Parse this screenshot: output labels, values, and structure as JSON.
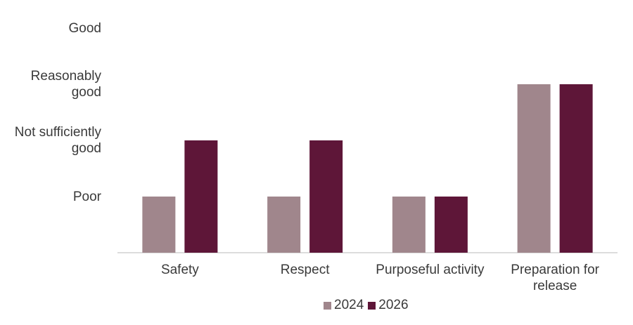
{
  "chart_data": {
    "type": "bar",
    "categories": [
      "Safety",
      "Respect",
      "Purposeful activity",
      "Preparation for\nrelease"
    ],
    "y_levels": [
      "Poor",
      "Not sufficiently\ngood",
      "Reasonably\ngood",
      "Good"
    ],
    "ylim": [
      0,
      4
    ],
    "series": [
      {
        "name": "2024",
        "color": "#a0868c",
        "values": [
          1,
          1,
          1,
          3
        ]
      },
      {
        "name": "2026",
        "color": "#5e1638",
        "values": [
          2,
          2,
          1,
          3
        ]
      }
    ],
    "grid": false,
    "legend": "bottom-center",
    "axis_color": "#d0d0d0"
  }
}
